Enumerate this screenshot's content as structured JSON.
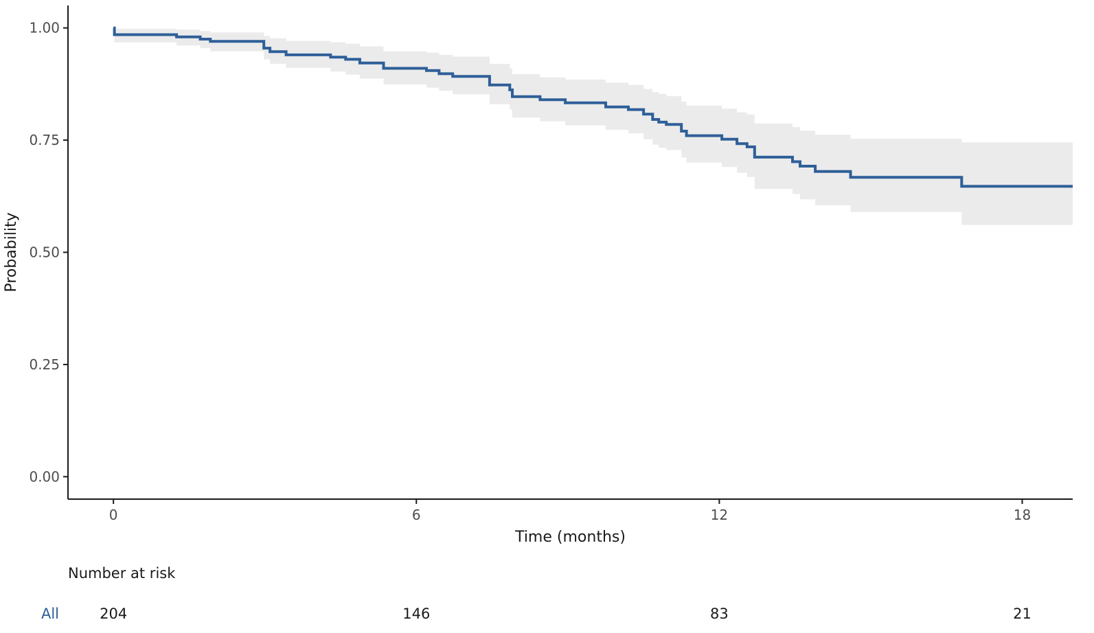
{
  "chart_data": {
    "type": "line",
    "subtype": "kaplan-meier",
    "xlabel": "Time (months)",
    "ylabel": "Probability",
    "xlim": [
      -0.9,
      19
    ],
    "ylim": [
      -0.05,
      1.05
    ],
    "x_ticks": [
      0,
      6,
      12,
      18
    ],
    "y_ticks": [
      0.0,
      0.25,
      0.5,
      0.75,
      1.0
    ],
    "y_tick_labels": [
      "0.00",
      "0.25",
      "0.50",
      "0.75",
      "1.00"
    ],
    "grid": false,
    "series": [
      {
        "color": "#2e5f98",
        "ci_color": "#ebebeb",
        "steps": [
          {
            "x": 0.0,
            "y": 1.0,
            "lower": 1.0,
            "upper": 1.0
          },
          {
            "x": 0.02,
            "y": 0.985,
            "lower": 0.968,
            "upper": 0.998
          },
          {
            "x": 1.25,
            "y": 0.98,
            "lower": 0.961,
            "upper": 0.996
          },
          {
            "x": 1.72,
            "y": 0.975,
            "lower": 0.955,
            "upper": 0.993
          },
          {
            "x": 1.92,
            "y": 0.97,
            "lower": 0.948,
            "upper": 0.99
          },
          {
            "x": 2.98,
            "y": 0.955,
            "lower": 0.93,
            "upper": 0.982
          },
          {
            "x": 3.1,
            "y": 0.947,
            "lower": 0.92,
            "upper": 0.977
          },
          {
            "x": 3.42,
            "y": 0.94,
            "lower": 0.911,
            "upper": 0.971
          },
          {
            "x": 4.3,
            "y": 0.935,
            "lower": 0.903,
            "upper": 0.968
          },
          {
            "x": 4.6,
            "y": 0.93,
            "lower": 0.896,
            "upper": 0.965
          },
          {
            "x": 4.88,
            "y": 0.922,
            "lower": 0.887,
            "upper": 0.959
          },
          {
            "x": 5.35,
            "y": 0.91,
            "lower": 0.874,
            "upper": 0.948
          },
          {
            "x": 6.2,
            "y": 0.905,
            "lower": 0.867,
            "upper": 0.945
          },
          {
            "x": 6.45,
            "y": 0.898,
            "lower": 0.86,
            "upper": 0.94
          },
          {
            "x": 6.72,
            "y": 0.892,
            "lower": 0.852,
            "upper": 0.936
          },
          {
            "x": 7.45,
            "y": 0.873,
            "lower": 0.83,
            "upper": 0.92
          },
          {
            "x": 7.85,
            "y": 0.862,
            "lower": 0.818,
            "upper": 0.91
          },
          {
            "x": 7.9,
            "y": 0.847,
            "lower": 0.8,
            "upper": 0.897
          },
          {
            "x": 8.45,
            "y": 0.84,
            "lower": 0.792,
            "upper": 0.89
          },
          {
            "x": 8.95,
            "y": 0.833,
            "lower": 0.783,
            "upper": 0.885
          },
          {
            "x": 9.75,
            "y": 0.824,
            "lower": 0.773,
            "upper": 0.878
          },
          {
            "x": 10.2,
            "y": 0.818,
            "lower": 0.765,
            "upper": 0.873
          },
          {
            "x": 10.5,
            "y": 0.808,
            "lower": 0.752,
            "upper": 0.864
          },
          {
            "x": 10.68,
            "y": 0.796,
            "lower": 0.74,
            "upper": 0.857
          },
          {
            "x": 10.8,
            "y": 0.79,
            "lower": 0.733,
            "upper": 0.853
          },
          {
            "x": 10.95,
            "y": 0.785,
            "lower": 0.728,
            "upper": 0.848
          },
          {
            "x": 11.25,
            "y": 0.77,
            "lower": 0.711,
            "upper": 0.836
          },
          {
            "x": 11.35,
            "y": 0.76,
            "lower": 0.7,
            "upper": 0.827
          },
          {
            "x": 12.05,
            "y": 0.752,
            "lower": 0.69,
            "upper": 0.82
          },
          {
            "x": 12.35,
            "y": 0.742,
            "lower": 0.677,
            "upper": 0.812
          },
          {
            "x": 12.55,
            "y": 0.735,
            "lower": 0.668,
            "upper": 0.807
          },
          {
            "x": 12.7,
            "y": 0.712,
            "lower": 0.641,
            "upper": 0.787
          },
          {
            "x": 13.45,
            "y": 0.702,
            "lower": 0.63,
            "upper": 0.779
          },
          {
            "x": 13.6,
            "y": 0.692,
            "lower": 0.618,
            "upper": 0.771
          },
          {
            "x": 13.9,
            "y": 0.68,
            "lower": 0.605,
            "upper": 0.762
          },
          {
            "x": 14.6,
            "y": 0.667,
            "lower": 0.59,
            "upper": 0.753
          },
          {
            "x": 16.8,
            "y": 0.647,
            "lower": 0.561,
            "upper": 0.745
          }
        ],
        "end_x": 19
      }
    ],
    "risk_table": {
      "title": "Number at risk",
      "groups": [
        {
          "name": "All",
          "color": "#2e5f98",
          "counts": [
            {
              "x": 0,
              "n": "204"
            },
            {
              "x": 6,
              "n": "146"
            },
            {
              "x": 12,
              "n": "83"
            },
            {
              "x": 18,
              "n": "21"
            }
          ]
        }
      ]
    }
  }
}
